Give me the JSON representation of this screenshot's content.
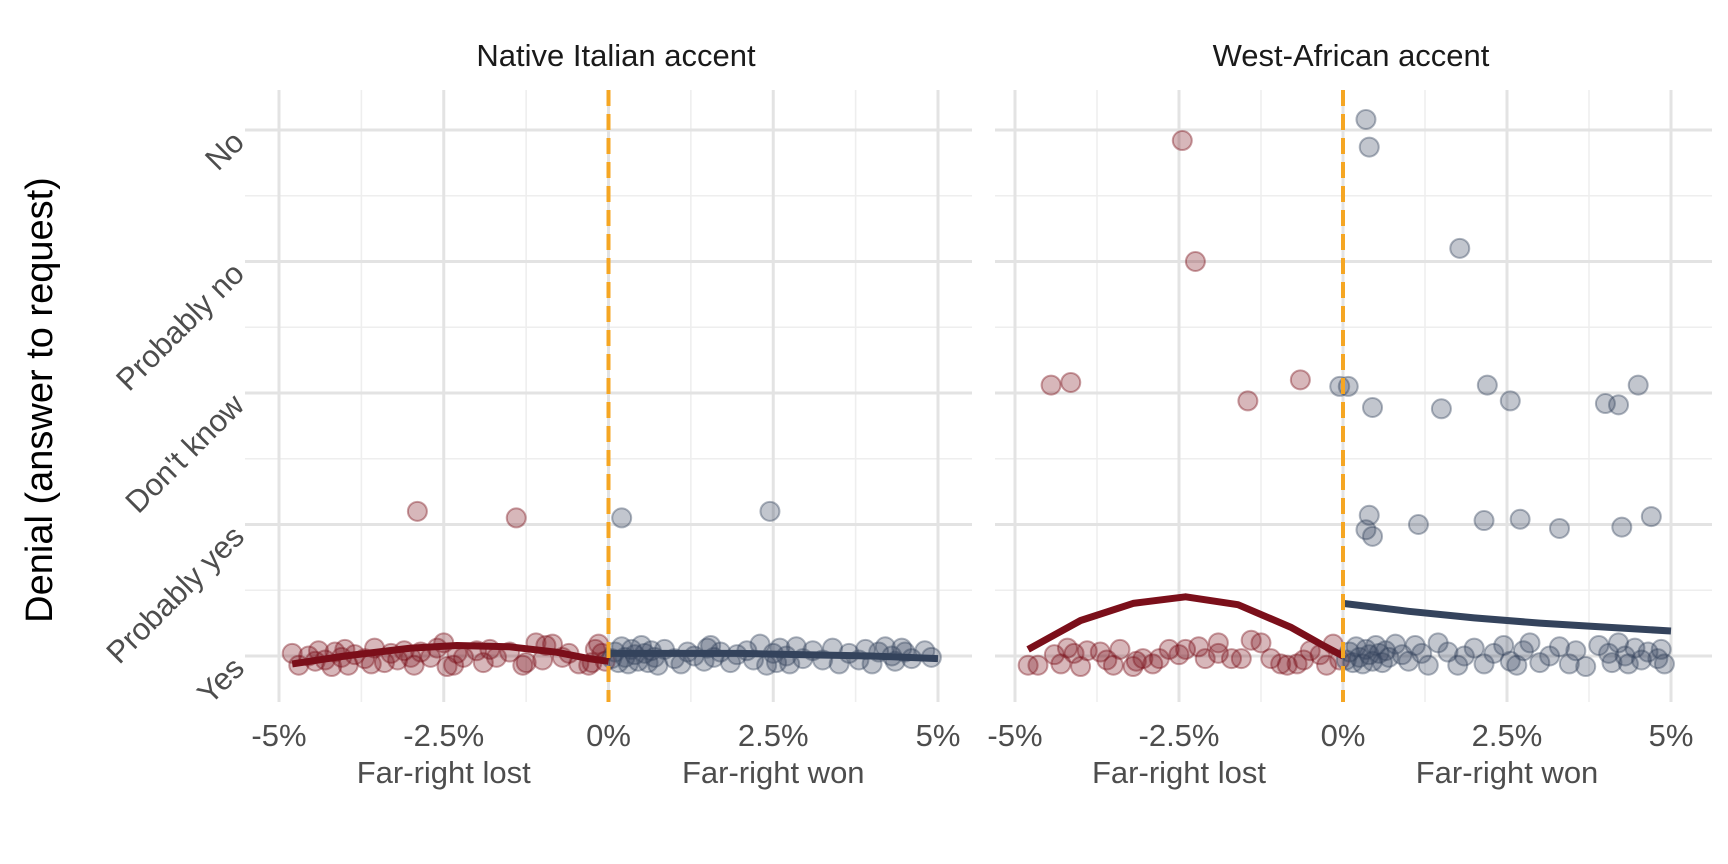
{
  "chart_data": {
    "type": "scatter",
    "ylabel": "Denial (answer to request)",
    "y_categories": [
      "Yes",
      "Probably yes",
      "Don't know",
      "Probably no",
      "No"
    ],
    "x_ticks": [
      "-5%",
      "-2.5%",
      "0%",
      "2.5%",
      "5%"
    ],
    "xlim": [
      -5,
      5
    ],
    "ylim": [
      1,
      5
    ],
    "cutoff": 0,
    "cutoff_color": "#f5a623",
    "colors": {
      "lost": "#7b0f1a",
      "won": "#34435c"
    },
    "side_labels": [
      "Far-right lost",
      "Far-right won"
    ],
    "grid": true,
    "panels": [
      {
        "title": "Native Italian accent",
        "points": [
          [
            -4.8,
            1.02
          ],
          [
            -4.7,
            0.93
          ],
          [
            -4.55,
            1.0
          ],
          [
            -4.45,
            0.96
          ],
          [
            -4.4,
            1.04
          ],
          [
            -4.3,
            0.97
          ],
          [
            -4.2,
            0.92
          ],
          [
            -4.15,
            1.03
          ],
          [
            -4.05,
            0.99
          ],
          [
            -4.0,
            1.05
          ],
          [
            -3.95,
            0.93
          ],
          [
            -3.85,
            1.01
          ],
          [
            -3.7,
            0.98
          ],
          [
            -3.6,
            0.94
          ],
          [
            -3.55,
            1.06
          ],
          [
            -3.4,
            0.95
          ],
          [
            -3.3,
            1.02
          ],
          [
            -3.2,
            0.97
          ],
          [
            -3.1,
            1.04
          ],
          [
            -3.0,
            0.99
          ],
          [
            -2.95,
            0.93
          ],
          [
            -2.85,
            1.03
          ],
          [
            -2.7,
            0.99
          ],
          [
            -2.6,
            1.06
          ],
          [
            -2.5,
            1.1
          ],
          [
            -2.45,
            0.92
          ],
          [
            -2.35,
            0.93
          ],
          [
            -2.3,
            1.02
          ],
          [
            -2.2,
            0.99
          ],
          [
            -2.0,
            1.04
          ],
          [
            -1.9,
            0.95
          ],
          [
            -1.8,
            1.05
          ],
          [
            -1.7,
            0.99
          ],
          [
            -1.5,
            1.03
          ],
          [
            -1.3,
            0.93
          ],
          [
            -1.25,
            0.95
          ],
          [
            -1.1,
            1.1
          ],
          [
            -1.0,
            0.97
          ],
          [
            -0.95,
            1.08
          ],
          [
            -0.85,
            1.09
          ],
          [
            -0.7,
            0.99
          ],
          [
            -0.6,
            1.02
          ],
          [
            -0.45,
            0.94
          ],
          [
            -0.3,
            0.93
          ],
          [
            -0.25,
            0.95
          ],
          [
            -0.2,
            1.05
          ],
          [
            -0.15,
            1.09
          ],
          [
            -0.1,
            1.02
          ],
          [
            -0.05,
            0.96
          ],
          [
            -2.9,
            2.1
          ],
          [
            -1.4,
            2.05
          ]
        ],
        "points_won": [
          [
            0.05,
            0.98
          ],
          [
            0.1,
            1.03
          ],
          [
            0.15,
            0.95
          ],
          [
            0.2,
            1.07
          ],
          [
            0.25,
            0.99
          ],
          [
            0.3,
            0.94
          ],
          [
            0.35,
            1.05
          ],
          [
            0.4,
            1.01
          ],
          [
            0.45,
            0.96
          ],
          [
            0.5,
            1.08
          ],
          [
            0.55,
            1.02
          ],
          [
            0.6,
            0.95
          ],
          [
            0.65,
            1.04
          ],
          [
            0.7,
            0.99
          ],
          [
            0.75,
            0.93
          ],
          [
            0.85,
            1.05
          ],
          [
            1.0,
            0.98
          ],
          [
            1.1,
            0.94
          ],
          [
            1.2,
            1.03
          ],
          [
            1.3,
            1.0
          ],
          [
            1.45,
            0.96
          ],
          [
            1.5,
            1.06
          ],
          [
            1.55,
            1.08
          ],
          [
            1.6,
            0.99
          ],
          [
            1.7,
            1.03
          ],
          [
            1.85,
            0.95
          ],
          [
            1.95,
            1.01
          ],
          [
            2.1,
            1.04
          ],
          [
            2.2,
            0.97
          ],
          [
            2.3,
            1.09
          ],
          [
            2.4,
            0.93
          ],
          [
            2.5,
            1.02
          ],
          [
            2.55,
            0.95
          ],
          [
            2.6,
            1.06
          ],
          [
            2.7,
            1.0
          ],
          [
            2.75,
            0.94
          ],
          [
            2.85,
            1.07
          ],
          [
            2.95,
            0.98
          ],
          [
            3.1,
            1.04
          ],
          [
            3.25,
            0.97
          ],
          [
            3.4,
            1.06
          ],
          [
            3.5,
            0.94
          ],
          [
            3.65,
            1.02
          ],
          [
            3.8,
            0.97
          ],
          [
            3.9,
            1.05
          ],
          [
            4.0,
            0.94
          ],
          [
            4.1,
            1.03
          ],
          [
            4.2,
            1.07
          ],
          [
            4.3,
            1.0
          ],
          [
            4.35,
            0.96
          ],
          [
            4.45,
            1.06
          ],
          [
            4.5,
            1.03
          ],
          [
            4.6,
            0.98
          ],
          [
            4.8,
            1.04
          ],
          [
            4.9,
            0.99
          ],
          [
            0.2,
            2.05
          ],
          [
            2.45,
            2.1
          ]
        ],
        "fit_lost": [
          [
            -4.8,
            0.94
          ],
          [
            -4.0,
            1.0
          ],
          [
            -3.0,
            1.06
          ],
          [
            -2.3,
            1.08
          ],
          [
            -1.5,
            1.07
          ],
          [
            -0.8,
            1.03
          ],
          [
            -0.3,
            0.98
          ],
          [
            0,
            0.96
          ]
        ],
        "fit_won": [
          [
            0,
            1.02
          ],
          [
            1.0,
            1.02
          ],
          [
            2.0,
            1.02
          ],
          [
            3.0,
            1.01
          ],
          [
            4.0,
            1.0
          ],
          [
            5.0,
            0.98
          ]
        ]
      },
      {
        "title": "West-African accent",
        "points": [
          [
            -4.8,
            0.93
          ],
          [
            -4.65,
            0.93
          ],
          [
            -4.4,
            1.01
          ],
          [
            -4.3,
            0.94
          ],
          [
            -4.2,
            1.06
          ],
          [
            -4.1,
            1.02
          ],
          [
            -4.0,
            0.92
          ],
          [
            -3.9,
            1.04
          ],
          [
            -3.7,
            1.03
          ],
          [
            -3.6,
            0.97
          ],
          [
            -3.5,
            0.93
          ],
          [
            -3.4,
            1.05
          ],
          [
            -3.2,
            0.92
          ],
          [
            -3.15,
            0.96
          ],
          [
            -3.05,
            0.98
          ],
          [
            -2.9,
            0.94
          ],
          [
            -2.8,
            0.98
          ],
          [
            -2.65,
            1.05
          ],
          [
            -2.5,
            1.01
          ],
          [
            -2.4,
            1.05
          ],
          [
            -2.2,
            1.07
          ],
          [
            -2.1,
            0.98
          ],
          [
            -1.9,
            1.02
          ],
          [
            -1.9,
            1.1
          ],
          [
            -1.7,
            0.98
          ],
          [
            -1.55,
            0.98
          ],
          [
            -1.4,
            1.12
          ],
          [
            -1.25,
            1.1
          ],
          [
            -1.1,
            0.98
          ],
          [
            -0.95,
            0.94
          ],
          [
            -0.85,
            0.93
          ],
          [
            -0.7,
            0.94
          ],
          [
            -0.6,
            0.97
          ],
          [
            -0.5,
            1.04
          ],
          [
            -0.35,
            1.01
          ],
          [
            -0.25,
            0.93
          ],
          [
            -0.15,
            1.09
          ],
          [
            -0.05,
            0.97
          ],
          [
            -4.45,
            3.06
          ],
          [
            -4.15,
            3.08
          ],
          [
            -2.45,
            4.92
          ],
          [
            -2.25,
            4.0
          ],
          [
            -1.45,
            2.94
          ],
          [
            -0.65,
            3.1
          ]
        ],
        "points_won": [
          [
            0.05,
            0.97
          ],
          [
            0.1,
            1.03
          ],
          [
            0.15,
            0.95
          ],
          [
            0.2,
            1.07
          ],
          [
            0.25,
            0.99
          ],
          [
            0.3,
            0.94
          ],
          [
            0.35,
            1.05
          ],
          [
            0.4,
            1.01
          ],
          [
            0.45,
            0.96
          ],
          [
            0.5,
            1.08
          ],
          [
            0.55,
            1.02
          ],
          [
            0.6,
            0.95
          ],
          [
            0.65,
            1.04
          ],
          [
            0.7,
            0.99
          ],
          [
            0.8,
            1.09
          ],
          [
            0.9,
            1.01
          ],
          [
            1.0,
            0.96
          ],
          [
            1.1,
            1.08
          ],
          [
            1.2,
            1.02
          ],
          [
            1.3,
            0.93
          ],
          [
            1.45,
            1.1
          ],
          [
            1.6,
            1.03
          ],
          [
            1.75,
            0.93
          ],
          [
            1.85,
            1.0
          ],
          [
            2.0,
            1.06
          ],
          [
            2.15,
            0.94
          ],
          [
            2.3,
            1.02
          ],
          [
            2.45,
            1.08
          ],
          [
            2.55,
            0.96
          ],
          [
            2.65,
            0.93
          ],
          [
            2.75,
            1.04
          ],
          [
            2.85,
            1.1
          ],
          [
            3.0,
            0.95
          ],
          [
            3.15,
            1.0
          ],
          [
            3.3,
            1.07
          ],
          [
            3.45,
            0.94
          ],
          [
            3.55,
            1.04
          ],
          [
            3.7,
            0.92
          ],
          [
            3.9,
            1.08
          ],
          [
            4.05,
            1.02
          ],
          [
            4.1,
            0.95
          ],
          [
            4.2,
            1.1
          ],
          [
            4.3,
            1.0
          ],
          [
            4.35,
            0.94
          ],
          [
            4.45,
            1.06
          ],
          [
            4.55,
            0.97
          ],
          [
            4.65,
            1.03
          ],
          [
            4.8,
            0.98
          ],
          [
            4.85,
            1.05
          ],
          [
            4.9,
            0.94
          ],
          [
            0.35,
            5.08
          ],
          [
            0.4,
            4.87
          ],
          [
            1.78,
            4.1
          ],
          [
            -0.05,
            3.05
          ],
          [
            0.08,
            3.05
          ],
          [
            0.45,
            2.89
          ],
          [
            1.5,
            2.88
          ],
          [
            2.2,
            3.06
          ],
          [
            2.55,
            2.94
          ],
          [
            4.0,
            2.92
          ],
          [
            4.2,
            2.91
          ],
          [
            4.5,
            3.06
          ],
          [
            0.35,
            1.96
          ],
          [
            0.4,
            2.07
          ],
          [
            0.45,
            1.91
          ],
          [
            1.15,
            2.0
          ],
          [
            2.15,
            2.03
          ],
          [
            2.7,
            2.04
          ],
          [
            3.3,
            1.97
          ],
          [
            4.25,
            1.98
          ],
          [
            4.7,
            2.06
          ]
        ],
        "fit_lost": [
          [
            -4.8,
            1.05
          ],
          [
            -4.0,
            1.27
          ],
          [
            -3.2,
            1.4
          ],
          [
            -2.4,
            1.45
          ],
          [
            -1.6,
            1.39
          ],
          [
            -0.8,
            1.22
          ],
          [
            -0.3,
            1.08
          ],
          [
            0,
            1.0
          ]
        ],
        "fit_won": [
          [
            0,
            1.4
          ],
          [
            1.0,
            1.34
          ],
          [
            2.0,
            1.29
          ],
          [
            3.0,
            1.25
          ],
          [
            4.0,
            1.22
          ],
          [
            5.0,
            1.19
          ]
        ]
      }
    ]
  }
}
